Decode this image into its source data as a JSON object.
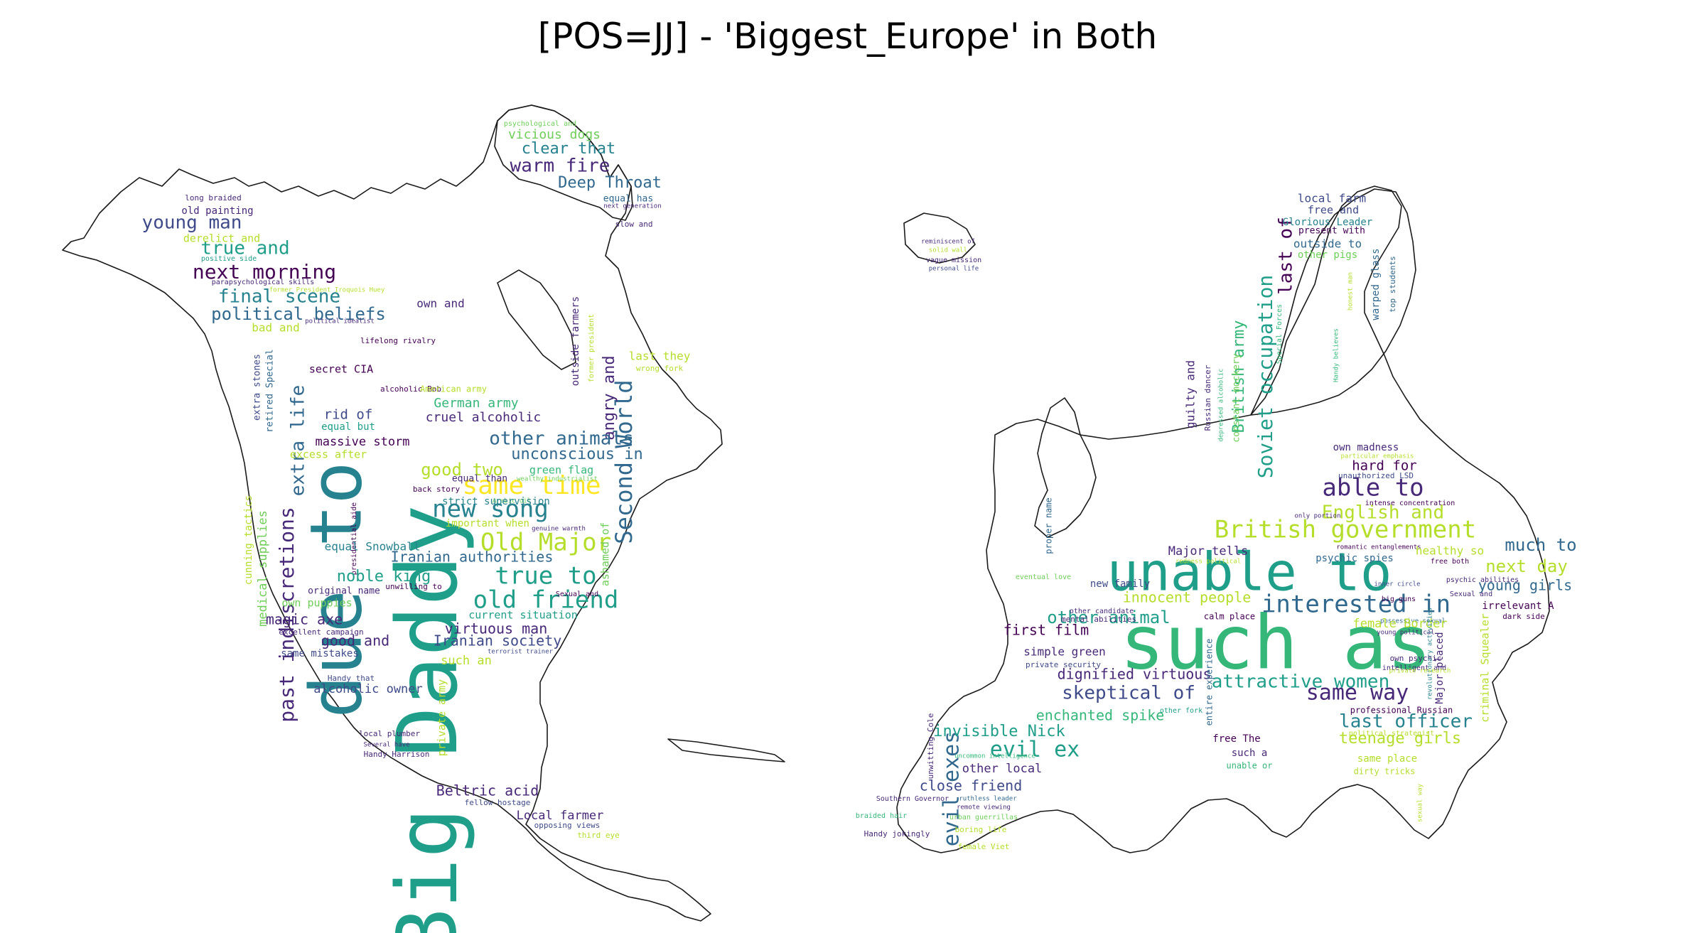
{
  "title": "[POS=JJ] - 'Biggest_Europe' in Both",
  "palette": {
    "viridis": [
      "#440154",
      "#482878",
      "#3e4a89",
      "#31688e",
      "#26828e",
      "#1f9e89",
      "#35b779",
      "#6ece58",
      "#b5de2b",
      "#fde725"
    ]
  },
  "panels": [
    {
      "name": "north-america",
      "words": [
        "Big Daddy",
        "due to",
        "same time",
        "new song",
        "Old Major",
        "true to",
        "old friend",
        "Second World",
        "past indiscretions",
        "final scene",
        "political beliefs",
        "next morning",
        "young man",
        "true and",
        "warm fire",
        "Deep Throat",
        "clear that",
        "vicious dogs",
        "psychological and",
        "long braided",
        "old painting",
        "derelict and",
        "positive side",
        "parapsychological skills",
        "former President Iroquois Huey",
        "political idealist",
        "bad and",
        "own and",
        "extra life",
        "extra stones",
        "retired Special",
        "lifelong rivalry",
        "secret CIA",
        "alcoholic Bob",
        "American army",
        "German army",
        "cruel alcoholic",
        "rid of",
        "equal but",
        "outside farmers",
        "former president",
        "last they",
        "wrong fork",
        "angry and",
        "other animals",
        "massive storm",
        "unconscious in",
        "excess after",
        "good two",
        "green flag",
        "equal than",
        "back story",
        "wealthy industrialist",
        "Arabic oil",
        "strict supervision",
        "important when",
        "genuine warmth",
        "ashamed of",
        "presidential aide",
        "medical supplies",
        "cunning tactics",
        "equal Snowball",
        "Iranian authorities",
        "noble king",
        "original name",
        "unwilling to",
        "Sexual and",
        "own puppies",
        "current situation",
        "magic axe",
        "virtuous man",
        "excellent campaign",
        "good and",
        "Iranian society",
        "same mistakes",
        "terrorist trainer",
        "such an",
        "Handy that",
        "alcoholic owner",
        "private army",
        "local plumber",
        "Several have",
        "Handy Harrison",
        "Beltric acid",
        "fellow hostage",
        "Local farmer",
        "opposing views",
        "third eye",
        "next generation",
        "slow and",
        "equal has"
      ]
    },
    {
      "name": "europe",
      "words": [
        "such as",
        "unable to",
        "British government",
        "interested in",
        "able to",
        "English and",
        "attractive women",
        "same way",
        "last officer",
        "teenage girls",
        "Soviet occupation",
        "British army",
        "last of",
        "much to",
        "next day",
        "young girls",
        "skeptical of",
        "dignified virtuous",
        "evil ex",
        "evil exes",
        "invisible Nick",
        "close friend",
        "other local",
        "enchanted spike",
        "innocent people",
        "other animal",
        "first film",
        "simple green",
        "private security",
        "new family",
        "local farm",
        "free and",
        "Glorious Leader",
        "present with",
        "outside to",
        "other pigs",
        "warped glass",
        "top students",
        "honest man",
        "Handy believes",
        "guilty and",
        "Russian dancer",
        "depressed alcoholic",
        "constant mockery",
        "Special Forces",
        "reminiscent of",
        "solid wall",
        "vague mission",
        "personal life",
        "own madness",
        "particular emphasis",
        "unauthorized LSD",
        "hard for",
        "intense concentration",
        "only portion",
        "romantic entanglements",
        "Major tells",
        "redness political",
        "psychic spies",
        "healthy so",
        "free both",
        "psychic abilities",
        "inner circle",
        "big guns",
        "Sexual and",
        "irrelevant A",
        "dark side",
        "possessive sexual",
        "female Border",
        "young political",
        "own psychic",
        "intelligent and",
        "calm place",
        "entire experience",
        "other candidate",
        "mental abilities",
        "eventual love",
        "proper name",
        "Major placed",
        "criminal Squealer",
        "revolutionary activities",
        "private research",
        "professional Russian",
        "political strategist",
        "other fork",
        "free The",
        "such a",
        "unable or",
        "same place",
        "dirty tricks",
        "sexual way",
        "unwitting Cole",
        "Southern Governor",
        "ruthless leader",
        "remote viewing",
        "urban guerrillas",
        "braided hair",
        "boring life",
        "Handy jokingly",
        "female Viet",
        "uncommon intelligence"
      ]
    }
  ]
}
